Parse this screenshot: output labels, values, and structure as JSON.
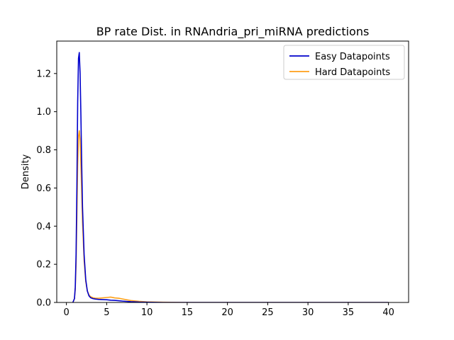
{
  "chart_data": {
    "type": "line",
    "title": "BP rate Dist. in RNAndria_pri_miRNA predictions",
    "xlabel": "",
    "ylabel": "Density",
    "xlim": [
      -1.2,
      42.5
    ],
    "ylim": [
      0,
      1.37
    ],
    "xticks": [
      0,
      5,
      10,
      15,
      20,
      25,
      30,
      35,
      40
    ],
    "yticks": [
      0.0,
      0.2,
      0.4,
      0.6,
      0.8,
      1.0,
      1.2
    ],
    "xtick_labels": [
      "0",
      "5",
      "10",
      "15",
      "20",
      "25",
      "30",
      "35",
      "40"
    ],
    "ytick_labels": [
      "0.0",
      "0.2",
      "0.4",
      "0.6",
      "0.8",
      "1.0",
      "1.2"
    ],
    "grid": false,
    "legend": "top-right",
    "series": [
      {
        "name": "Easy Datapoints",
        "color": "#0000cc",
        "x": [
          0.8,
          1.0,
          1.1,
          1.2,
          1.3,
          1.4,
          1.5,
          1.6,
          1.7,
          1.8,
          1.9,
          2.0,
          2.2,
          2.4,
          2.6,
          2.8,
          3.0,
          3.3,
          3.6,
          4.0,
          4.5,
          5.0,
          5.5,
          6.0,
          6.5,
          7.0,
          8.0,
          9.0,
          10.0,
          12.0,
          15.0,
          20.0,
          30.0,
          40.0
        ],
        "y": [
          0.0,
          0.02,
          0.08,
          0.25,
          0.6,
          1.05,
          1.28,
          1.31,
          1.2,
          0.98,
          0.72,
          0.5,
          0.25,
          0.12,
          0.06,
          0.035,
          0.025,
          0.02,
          0.018,
          0.016,
          0.015,
          0.014,
          0.012,
          0.011,
          0.009,
          0.007,
          0.004,
          0.002,
          0.001,
          0.0,
          0.0,
          0.0,
          0.0,
          0.0
        ]
      },
      {
        "name": "Hard Datapoints",
        "color": "#ff9f1a",
        "x": [
          0.8,
          1.0,
          1.1,
          1.2,
          1.3,
          1.4,
          1.5,
          1.6,
          1.7,
          1.8,
          1.9,
          2.0,
          2.2,
          2.4,
          2.6,
          2.8,
          3.0,
          3.3,
          3.6,
          4.0,
          4.5,
          5.0,
          5.5,
          6.0,
          6.5,
          7.0,
          8.0,
          9.0,
          10.0,
          12.0,
          15.0,
          20.0,
          30.0,
          40.0
        ],
        "y": [
          0.0,
          0.02,
          0.07,
          0.2,
          0.45,
          0.72,
          0.87,
          0.9,
          0.85,
          0.72,
          0.57,
          0.42,
          0.22,
          0.11,
          0.06,
          0.04,
          0.03,
          0.025,
          0.022,
          0.022,
          0.024,
          0.026,
          0.028,
          0.024,
          0.022,
          0.018,
          0.01,
          0.006,
          0.003,
          0.001,
          0.0,
          0.0,
          0.0,
          0.0
        ]
      }
    ]
  }
}
